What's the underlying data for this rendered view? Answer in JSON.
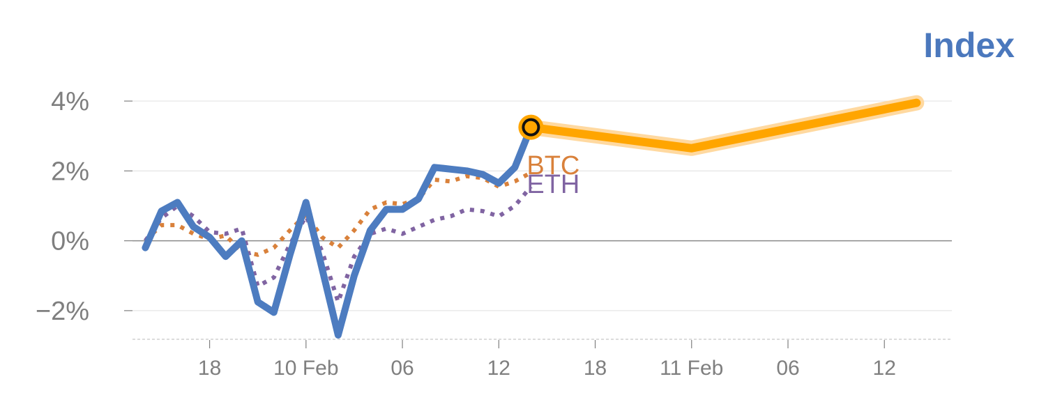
{
  "chart_data": {
    "type": "line",
    "title": "Index",
    "y_tick_labels": [
      "4%",
      "2%",
      "0%",
      "−2%"
    ],
    "y_ticks": [
      4,
      2,
      0,
      -2
    ],
    "ylim": [
      -2.8,
      4.5
    ],
    "x_tick_labels": [
      "18",
      "10 Feb",
      "06",
      "12",
      "18",
      "11 Feb",
      "06",
      "12"
    ],
    "x_tick_positions": [
      4,
      10,
      16,
      22,
      28,
      34,
      40,
      46
    ],
    "xlim": [
      -0.8,
      50.2
    ],
    "grid": true,
    "index_series": {
      "x": [
        0,
        1,
        2,
        3,
        4,
        5,
        6,
        7,
        8,
        9,
        10,
        11,
        12,
        13,
        14,
        15,
        16,
        17,
        18,
        19,
        20,
        21,
        22,
        23,
        24
      ],
      "values": [
        -0.2,
        0.85,
        1.1,
        0.4,
        0.1,
        -0.45,
        0.0,
        -1.75,
        -2.05,
        -0.4,
        1.1,
        -0.8,
        -2.7,
        -1.0,
        0.3,
        0.9,
        0.9,
        1.2,
        2.1,
        2.05,
        2.0,
        1.9,
        1.65,
        2.1,
        3.25
      ]
    },
    "forecast": {
      "x": [
        24,
        34,
        48
      ],
      "values": [
        3.25,
        2.65,
        3.95
      ]
    },
    "highlight_point": {
      "x": 24,
      "value": 3.25
    },
    "series": [
      {
        "name": "BTC",
        "color": "#d9813b",
        "x": [
          0,
          1,
          2,
          3,
          4,
          5,
          6,
          7,
          8,
          9,
          10,
          11,
          12,
          13,
          14,
          15,
          16,
          17,
          18,
          19,
          20,
          21,
          22,
          23,
          24
        ],
        "values": [
          0.0,
          0.45,
          0.45,
          0.2,
          0.05,
          0.15,
          -0.3,
          -0.4,
          -0.2,
          0.3,
          0.75,
          0.1,
          -0.2,
          0.3,
          0.9,
          1.1,
          1.05,
          1.2,
          1.75,
          1.7,
          1.85,
          1.8,
          1.55,
          1.7,
          1.95
        ]
      },
      {
        "name": "ETH",
        "color": "#8064a2",
        "x": [
          0,
          1,
          2,
          3,
          4,
          5,
          6,
          7,
          8,
          9,
          10,
          11,
          12,
          13,
          14,
          15,
          16,
          17,
          18,
          19,
          20,
          21,
          22,
          23,
          24
        ],
        "values": [
          0.0,
          0.65,
          1.0,
          0.7,
          0.25,
          0.2,
          0.35,
          -1.3,
          -1.05,
          -0.1,
          0.7,
          -0.3,
          -1.75,
          -0.45,
          0.2,
          0.35,
          0.2,
          0.4,
          0.6,
          0.7,
          0.9,
          0.85,
          0.7,
          1.0,
          1.55
        ]
      }
    ],
    "colors": {
      "index_line": "#4d7cc0",
      "forecast_line": "#ffa500",
      "forecast_glow": "#ffd9a0",
      "grid": "#e5e5e5",
      "zero_line": "#8a8a8a",
      "axis": "#d0d0d0",
      "tick_text": "#7f7f7f",
      "title": "#4b78bd"
    }
  }
}
